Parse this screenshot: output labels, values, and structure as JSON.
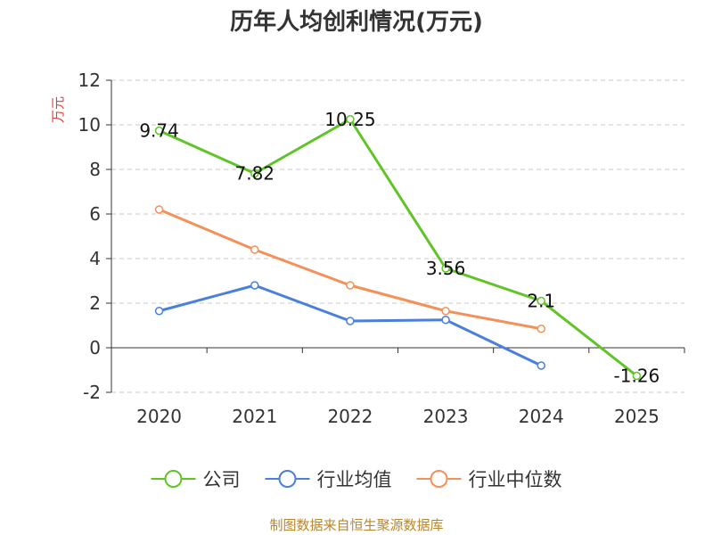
{
  "title": "历年人均创利情况(万元)",
  "footer": "制图数据来自恒生聚源数据库",
  "chart_data": {
    "type": "line",
    "title": "历年人均创利情况(万元)",
    "ylabel": "万元",
    "xlabel": "",
    "categories": [
      "2020",
      "2021",
      "2022",
      "2023",
      "2024",
      "2025"
    ],
    "ylim": [
      -2,
      12
    ],
    "yticks": [
      -2,
      0,
      2,
      4,
      6,
      8,
      10,
      12
    ],
    "ytick_labels": [
      "-2",
      "0",
      "2",
      "4",
      "6",
      "8",
      "10",
      "12"
    ],
    "grid": true,
    "legend_position": "bottom",
    "series": [
      {
        "name": "公司",
        "color": "#5fc426",
        "values": [
          9.74,
          7.82,
          10.25,
          3.56,
          2.1,
          -1.26
        ],
        "labels": [
          "9.74",
          "7.82",
          "10.25",
          "3.56",
          "2.1",
          "-1.26"
        ]
      },
      {
        "name": "行业均值",
        "color": "#4a7fdc",
        "values": [
          1.65,
          2.8,
          1.2,
          1.25,
          -0.8,
          null
        ]
      },
      {
        "name": "行业中位数",
        "color": "#f4905a",
        "values": [
          6.2,
          4.4,
          2.8,
          1.65,
          0.85,
          null
        ]
      }
    ]
  }
}
